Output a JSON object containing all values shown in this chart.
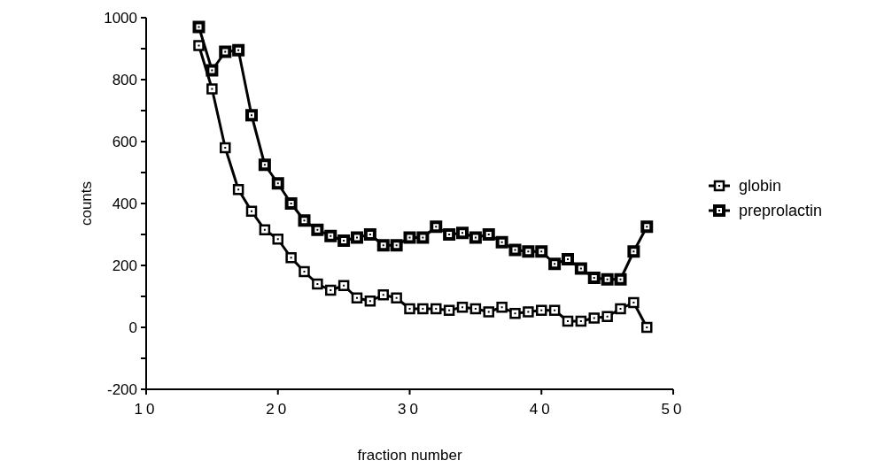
{
  "chart_data": {
    "type": "line",
    "xlabel": "fraction number",
    "ylabel": "counts",
    "xlim": [
      10,
      50
    ],
    "xticks": [
      10,
      20,
      30,
      40,
      50
    ],
    "ylim": [
      -200,
      1000
    ],
    "yticks": [
      -200,
      {
        "value": -100,
        "label": null
      },
      0,
      {
        "value": 100,
        "label": null
      },
      200,
      {
        "value": 300,
        "label": null
      },
      400,
      {
        "value": 500,
        "label": null
      },
      600,
      {
        "value": 700,
        "label": null
      },
      800,
      {
        "value": 900,
        "label": null
      },
      1000
    ],
    "x": [
      14,
      15,
      16,
      17,
      18,
      19,
      20,
      21,
      22,
      23,
      24,
      25,
      26,
      27,
      28,
      29,
      30,
      31,
      32,
      33,
      34,
      35,
      36,
      37,
      38,
      39,
      40,
      41,
      42,
      43,
      44,
      45,
      46,
      47,
      48
    ],
    "marker": "square",
    "grid": false,
    "legend": "right",
    "series": [
      {
        "name": "globin",
        "color": "#000000",
        "values": [
          910,
          770,
          580,
          445,
          375,
          315,
          285,
          225,
          180,
          140,
          120,
          135,
          95,
          85,
          105,
          95,
          60,
          60,
          60,
          55,
          65,
          60,
          50,
          65,
          45,
          50,
          55,
          55,
          20,
          20,
          30,
          35,
          60,
          80,
          0
        ]
      },
      {
        "name": "preprolactin",
        "color": "#000000",
        "values": [
          970,
          830,
          890,
          895,
          685,
          525,
          465,
          400,
          345,
          315,
          295,
          280,
          290,
          300,
          265,
          265,
          290,
          290,
          325,
          300,
          305,
          290,
          300,
          275,
          250,
          245,
          245,
          205,
          220,
          190,
          160,
          155,
          155,
          245,
          325
        ]
      }
    ]
  }
}
